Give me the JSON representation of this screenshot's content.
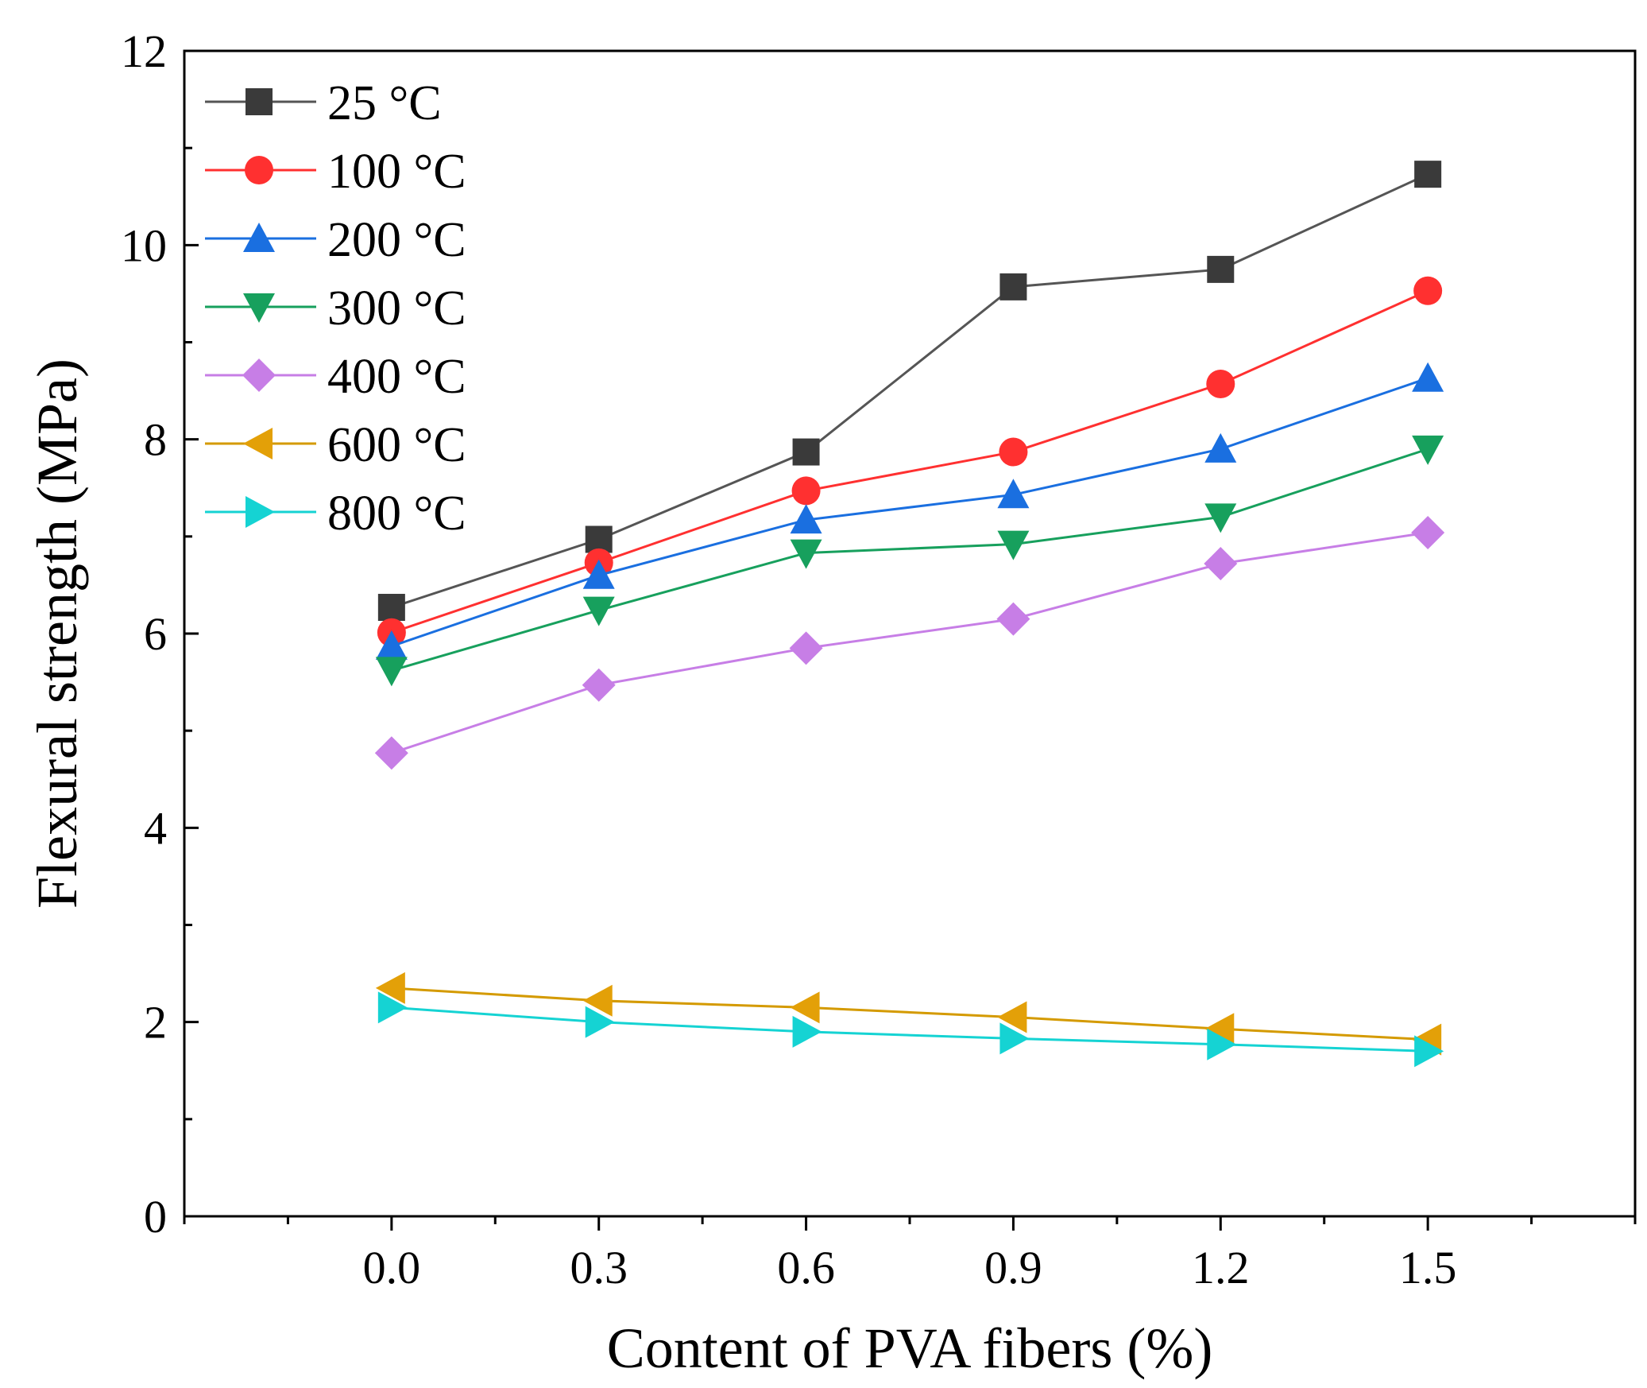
{
  "chart_data": {
    "type": "line",
    "title": "",
    "xlabel": "Content of PVA fibers (%)",
    "ylabel": "Flexural strength (MPa)",
    "xlim": [
      -0.3,
      1.8
    ],
    "ylim": [
      0,
      12
    ],
    "x": [
      0.0,
      0.3,
      0.6,
      0.9,
      1.2,
      1.5
    ],
    "x_tick_labels": [
      "0.0",
      "0.3",
      "0.6",
      "0.9",
      "1.2",
      "1.5"
    ],
    "y_ticks": [
      0,
      2,
      4,
      6,
      8,
      10,
      12
    ],
    "y_tick_labels": [
      "0",
      "2",
      "4",
      "6",
      "8",
      "10",
      "12"
    ],
    "grid": false,
    "legend_position": "top-left",
    "series": [
      {
        "name": "25 °C",
        "marker": "square",
        "color": "#3a3a3a",
        "line_color": "#555555",
        "values": [
          6.27,
          6.97,
          7.87,
          9.57,
          9.75,
          10.73
        ]
      },
      {
        "name": "100 °C",
        "marker": "circle",
        "color": "#ff3030",
        "line_color": "#ff3030",
        "values": [
          6.01,
          6.73,
          7.47,
          7.87,
          8.57,
          9.53
        ]
      },
      {
        "name": "200 °C",
        "marker": "triangle-up",
        "color": "#1a6fe0",
        "line_color": "#1a6fe0",
        "values": [
          5.87,
          6.6,
          7.17,
          7.43,
          7.9,
          8.63
        ]
      },
      {
        "name": "300 °C",
        "marker": "triangle-down",
        "color": "#17a05d",
        "line_color": "#17a05d",
        "values": [
          5.62,
          6.24,
          6.83,
          6.92,
          7.2,
          7.9
        ]
      },
      {
        "name": "400 °C",
        "marker": "diamond",
        "color": "#c77ee6",
        "line_color": "#c77ee6",
        "values": [
          4.77,
          5.47,
          5.85,
          6.15,
          6.72,
          7.04
        ]
      },
      {
        "name": "600 °C",
        "marker": "triangle-left",
        "color": "#e3a008",
        "line_color": "#d49a00",
        "values": [
          2.35,
          2.22,
          2.15,
          2.05,
          1.93,
          1.82
        ]
      },
      {
        "name": "800 °C",
        "marker": "triangle-right",
        "color": "#15d3d3",
        "line_color": "#15d3d3",
        "values": [
          2.15,
          2.0,
          1.9,
          1.83,
          1.77,
          1.7
        ]
      }
    ]
  }
}
